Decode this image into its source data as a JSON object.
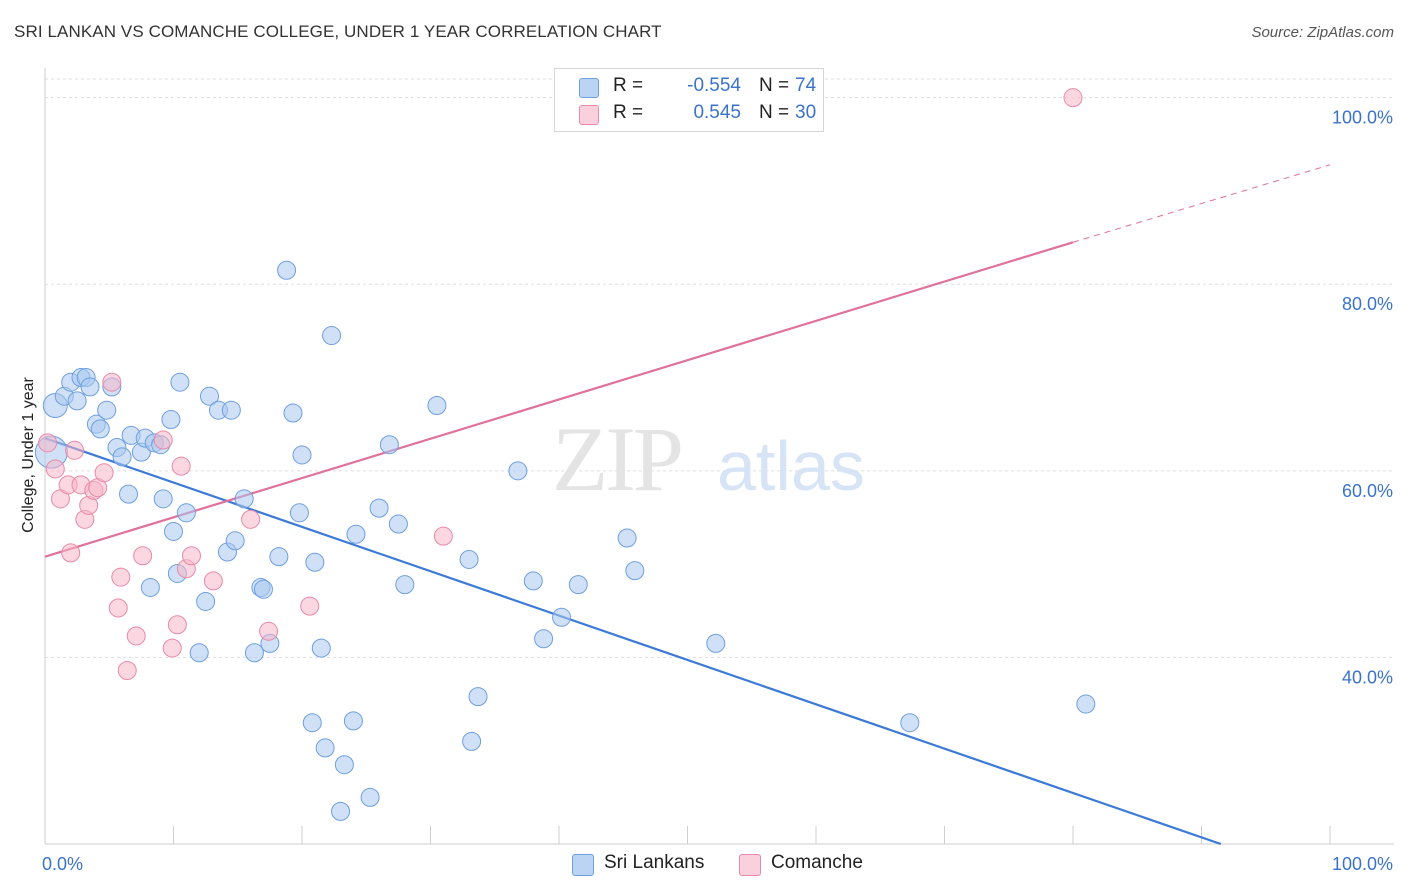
{
  "header": {
    "title": "SRI LANKAN VS COMANCHE COLLEGE, UNDER 1 YEAR CORRELATION CHART",
    "source": "Source: ZipAtlas.com"
  },
  "watermark": {
    "zip": "ZIP",
    "atlas": "atlas"
  },
  "legend": {
    "rows": [
      {
        "r_label": "R =",
        "r_value": "-0.554",
        "n_label": "N =",
        "n_value": "74",
        "color": "#a9c8f0"
      },
      {
        "r_label": "R =",
        "r_value": "0.545",
        "n_label": "N =",
        "n_value": "30",
        "color": "#f5b7c8"
      }
    ]
  },
  "bottom_legend": {
    "sri": {
      "label": "Sri Lankans",
      "color": "#a9c8f0"
    },
    "comanche": {
      "label": "Comanche",
      "color": "#f5b7c8"
    }
  },
  "chart_data": {
    "type": "scatter",
    "title": "SRI LANKAN VS COMANCHE COLLEGE, UNDER 1 YEAR CORRELATION CHART",
    "xlabel": "",
    "ylabel": "College, Under 1 year",
    "xlim": [
      0,
      100
    ],
    "ylim": [
      20,
      102
    ],
    "x_tick_labels": [
      "0.0%",
      "100.0%"
    ],
    "y_ticks": [
      40,
      60,
      80,
      100
    ],
    "y_tick_labels": [
      "40.0%",
      "60.0%",
      "80.0%",
      "100.0%"
    ],
    "grid": true,
    "series": [
      {
        "name": "Sri Lankans",
        "color": "#3b7ad6",
        "fill": "#a9c8f0",
        "trend": {
          "x0": 0,
          "y0": 63.5,
          "x1": 91.5,
          "y1": 20,
          "dashed_to": 91.5
        },
        "points": [
          [
            0.5,
            62
          ],
          [
            0.8,
            67
          ],
          [
            1.5,
            68
          ],
          [
            2,
            69.5
          ],
          [
            2.5,
            67.5
          ],
          [
            2.8,
            70
          ],
          [
            3.2,
            70
          ],
          [
            3.5,
            69
          ],
          [
            4,
            65
          ],
          [
            4.3,
            64.5
          ],
          [
            4.8,
            66.5
          ],
          [
            5.2,
            69
          ],
          [
            5.6,
            62.5
          ],
          [
            6,
            61.5
          ],
          [
            6.5,
            57.5
          ],
          [
            6.7,
            63.8
          ],
          [
            7.5,
            62
          ],
          [
            7.8,
            63.5
          ],
          [
            8.2,
            47.5
          ],
          [
            8.5,
            63
          ],
          [
            9,
            62.8
          ],
          [
            9.2,
            57
          ],
          [
            9.8,
            65.5
          ],
          [
            10,
            53.5
          ],
          [
            10.3,
            49
          ],
          [
            10.5,
            69.5
          ],
          [
            11,
            55.5
          ],
          [
            12,
            40.5
          ],
          [
            12.5,
            46
          ],
          [
            12.8,
            68
          ],
          [
            13.5,
            66.5
          ],
          [
            14.2,
            51.3
          ],
          [
            14.5,
            66.5
          ],
          [
            14.8,
            52.5
          ],
          [
            15.5,
            57
          ],
          [
            16.3,
            40.5
          ],
          [
            16.8,
            47.5
          ],
          [
            17,
            47.3
          ],
          [
            17.5,
            41.5
          ],
          [
            18.2,
            50.8
          ],
          [
            18.8,
            81.5
          ],
          [
            19.3,
            66.2
          ],
          [
            19.8,
            55.5
          ],
          [
            20,
            61.7
          ],
          [
            20.8,
            33
          ],
          [
            21,
            50.2
          ],
          [
            21.5,
            41
          ],
          [
            21.8,
            30.3
          ],
          [
            22.3,
            74.5
          ],
          [
            23,
            23.5
          ],
          [
            23.3,
            28.5
          ],
          [
            24,
            33.2
          ],
          [
            24.2,
            53.2
          ],
          [
            25.3,
            25
          ],
          [
            26,
            56
          ],
          [
            26.8,
            62.8
          ],
          [
            27.5,
            54.3
          ],
          [
            28,
            47.8
          ],
          [
            30.5,
            67
          ],
          [
            33,
            50.5
          ],
          [
            33.2,
            31
          ],
          [
            33.7,
            35.8
          ],
          [
            36.8,
            60
          ],
          [
            38,
            48.2
          ],
          [
            38.8,
            42
          ],
          [
            40.2,
            44.3
          ],
          [
            41.5,
            47.8
          ],
          [
            45.3,
            52.8
          ],
          [
            45.9,
            49.3
          ],
          [
            52.2,
            41.5
          ],
          [
            67.3,
            33
          ],
          [
            81,
            35
          ]
        ],
        "point_sizes": [
          3,
          2,
          1,
          1,
          1,
          1,
          1,
          1,
          1,
          1,
          1,
          1,
          1,
          1,
          1,
          1,
          1,
          1,
          1,
          1,
          1,
          1,
          1,
          1,
          1,
          1,
          1,
          1,
          1,
          1,
          1,
          1,
          1,
          1,
          1,
          1,
          1,
          1,
          1,
          1,
          1,
          1,
          1,
          1,
          1,
          1,
          1,
          1,
          1,
          1,
          1,
          1,
          1,
          1,
          1,
          1,
          1,
          1,
          1,
          1,
          1,
          1,
          1,
          1,
          1,
          1,
          1,
          1,
          1,
          1,
          1,
          1
        ]
      },
      {
        "name": "Comanche",
        "color": "#e0719a",
        "fill": "#f5b7c8",
        "trend": {
          "x0": 0,
          "y0": 50.8,
          "x1": 80,
          "y1": 84.5,
          "dashed_to": 100,
          "dashed_y": 92.8
        },
        "points": [
          [
            0.2,
            63
          ],
          [
            0.8,
            60.2
          ],
          [
            1.2,
            57
          ],
          [
            1.8,
            58.5
          ],
          [
            2,
            51.2
          ],
          [
            2.3,
            62.2
          ],
          [
            2.8,
            58.5
          ],
          [
            3.1,
            54.8
          ],
          [
            3.4,
            56.3
          ],
          [
            3.8,
            57.9
          ],
          [
            4.1,
            58.2
          ],
          [
            4.6,
            59.8
          ],
          [
            5.2,
            69.5
          ],
          [
            5.7,
            45.3
          ],
          [
            5.9,
            48.6
          ],
          [
            6.4,
            38.6
          ],
          [
            7.1,
            42.3
          ],
          [
            7.6,
            50.9
          ],
          [
            9.2,
            63.3
          ],
          [
            9.9,
            41
          ],
          [
            10.3,
            43.5
          ],
          [
            10.6,
            60.5
          ],
          [
            11,
            49.5
          ],
          [
            11.4,
            50.9
          ],
          [
            13.1,
            48.2
          ],
          [
            16,
            54.8
          ],
          [
            17.4,
            42.8
          ],
          [
            20.6,
            45.5
          ],
          [
            31,
            53
          ],
          [
            80,
            100
          ]
        ]
      }
    ]
  }
}
